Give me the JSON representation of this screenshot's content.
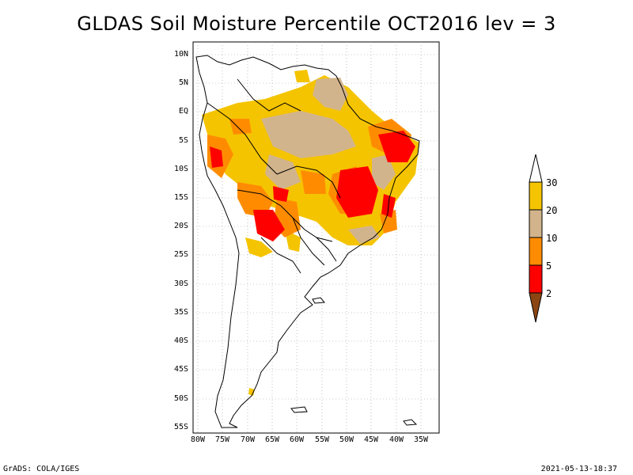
{
  "title": "GLDAS Soil Moisture Percentile OCT2016 lev = 3",
  "map": {
    "lat_ticks": [
      "10N",
      "5N",
      "EQ",
      "5S",
      "10S",
      "15S",
      "20S",
      "25S",
      "30S",
      "35S",
      "40S",
      "45S",
      "50S",
      "55S"
    ],
    "lon_ticks": [
      "80W",
      "75W",
      "70W",
      "65W",
      "60W",
      "55W",
      "50W",
      "45W",
      "40W",
      "35W"
    ],
    "lat_range": [
      -55,
      10
    ],
    "lon_range": [
      -80,
      -35
    ],
    "grid": true
  },
  "colorbar": {
    "levels": [
      "30",
      "20",
      "10",
      "5",
      "2"
    ],
    "colors": {
      "above30": "#ffffff",
      "20to30": "#f5c400",
      "10to20": "#d2b48c",
      "5to10": "#ff8c00",
      "2to5": "#ff0000",
      "below2": "#8b4513"
    }
  },
  "footer": {
    "left": "GrADS: COLA/IGES",
    "right": "2021-05-13-18:37"
  }
}
